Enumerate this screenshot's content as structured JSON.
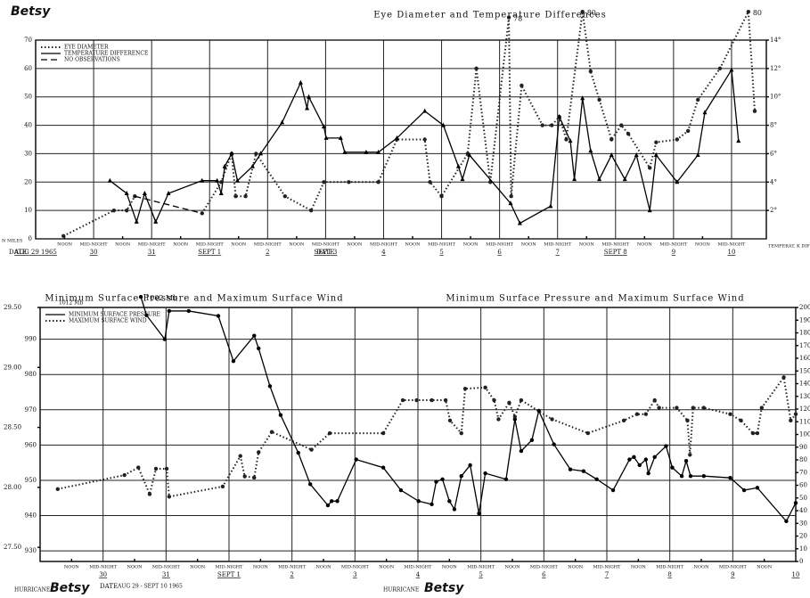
{
  "chart_data": [
    {
      "type": "line",
      "title": "Eye Diameter and Temperature Differences",
      "storm_label": "Betsy",
      "y_label": "N MILES",
      "y2_label": "TEMPERAT. K DIFFERENCE",
      "x_label": "DATE",
      "grid": true,
      "legend": "upper left",
      "xlim": [
        0,
        12.6
      ],
      "xticks": [
        {
          "value": 0.5,
          "label": "NOON"
        },
        {
          "value": 1,
          "label": "MID-NIGHT"
        },
        {
          "value": 1.5,
          "label": "NOON"
        },
        {
          "value": 2,
          "label": "MID-NIGHT"
        },
        {
          "value": 2.5,
          "label": "NOON"
        },
        {
          "value": 3,
          "label": "MID-NIGHT"
        },
        {
          "value": 3.5,
          "label": "NOON"
        },
        {
          "value": 4,
          "label": "MID-NIGHT"
        },
        {
          "value": 4.5,
          "label": "NOON"
        },
        {
          "value": 5,
          "label": "MID-NIGHT"
        },
        {
          "value": 5.5,
          "label": "NOON"
        },
        {
          "value": 6,
          "label": "MID-NIGHT"
        },
        {
          "value": 6.5,
          "label": "NOON"
        },
        {
          "value": 7,
          "label": "MID-NIGHT"
        },
        {
          "value": 7.5,
          "label": "NOON"
        },
        {
          "value": 8,
          "label": "MID-NIGHT"
        },
        {
          "value": 8.5,
          "label": "NOON"
        },
        {
          "value": 9,
          "label": "MID-NIGHT"
        },
        {
          "value": 9.5,
          "label": "NOON"
        },
        {
          "value": 10,
          "label": "MID-NIGHT"
        },
        {
          "value": 10.5,
          "label": "NOON"
        },
        {
          "value": 11,
          "label": "MID-NIGHT"
        },
        {
          "value": 11.5,
          "label": "NOON"
        },
        {
          "value": 12,
          "label": "MID-NIGHT"
        }
      ],
      "dates": [
        {
          "value": 0,
          "label": "AUG 29 1965"
        },
        {
          "value": 1,
          "label": "30"
        },
        {
          "value": 2,
          "label": "31"
        },
        {
          "value": 3,
          "label": "SEPT 1"
        },
        {
          "value": 4,
          "label": "2"
        },
        {
          "value": 5,
          "label": "SEPT 3"
        },
        {
          "value": 6,
          "label": "4"
        },
        {
          "value": 7,
          "label": "5"
        },
        {
          "value": 8,
          "label": "6"
        },
        {
          "value": 9,
          "label": "7"
        },
        {
          "value": 10,
          "label": "SEPT 8"
        },
        {
          "value": 11,
          "label": "9"
        },
        {
          "value": 12,
          "label": "10"
        }
      ],
      "ylim": [
        0,
        70
      ],
      "yticks": [
        0,
        10,
        20,
        30,
        40,
        50,
        60,
        70
      ],
      "y2lim": [
        0,
        14
      ],
      "y2ticks": [
        {
          "value": 2,
          "label": "2°"
        },
        {
          "value": 4,
          "label": "4°"
        },
        {
          "value": 6,
          "label": "6°"
        },
        {
          "value": 8,
          "label": "8°"
        },
        {
          "value": 10,
          "label": "10°"
        },
        {
          "value": 12,
          "label": "12°"
        },
        {
          "value": 14,
          "label": "14°"
        }
      ],
      "series": [
        {
          "name": "EYE DIAMETER",
          "color": "#222222",
          "style": "dotted",
          "marker": "circle",
          "x": [
            0.48,
            1.35,
            1.57,
            1.71,
            null,
            2.87,
            3.2,
            3.38,
            3.45,
            3.62,
            3.8,
            4.3,
            4.75,
            4.97,
            5.4,
            5.91,
            6.23,
            6.71,
            6.8,
            7.0,
            7.45,
            7.6,
            7.84,
            8.16,
            8.2,
            8.38,
            8.74,
            8.9,
            9.03,
            9.15,
            9.43,
            9.57,
            9.72,
            9.93,
            10.1,
            10.22,
            10.59,
            10.7,
            11.06,
            11.25,
            11.42,
            11.8,
            12.29,
            12.4
          ],
          "values": [
            1,
            10,
            10,
            15,
            null,
            9,
            20,
            30,
            15,
            15,
            30,
            15,
            10,
            20,
            20,
            20,
            35,
            35,
            20,
            15,
            30,
            60,
            20,
            78,
            15,
            54,
            40,
            40,
            43,
            35,
            80,
            59,
            49,
            35,
            40,
            37,
            25,
            34,
            35,
            38,
            49,
            60,
            80,
            45
          ],
          "value_labels": [
            null,
            null,
            null,
            null,
            null,
            null,
            null,
            null,
            null,
            null,
            null,
            null,
            null,
            null,
            null,
            null,
            null,
            null,
            null,
            null,
            null,
            null,
            null,
            "78",
            null,
            null,
            null,
            null,
            null,
            null,
            "80",
            null,
            null,
            null,
            null,
            null,
            null,
            null,
            null,
            null,
            null,
            null,
            "80",
            null
          ]
        },
        {
          "name": "TEMPERATURE DIFFERENCE",
          "color": "#000000",
          "style": "solid",
          "marker": "triangle",
          "axis": "y2",
          "x": [
            1.28,
            1.57,
            1.74,
            1.88,
            2.07,
            2.29,
            2.87,
            3.13,
            3.2,
            3.26,
            3.38,
            3.48,
            3.74,
            3.88,
            4.25,
            4.57,
            4.68,
            4.71,
            4.97,
            5.01,
            5.26,
            5.33,
            5.7,
            5.91,
            6.23,
            6.71,
            7.03,
            7.29,
            7.36,
            7.48,
            8.19,
            8.35,
            8.88,
            9.03,
            9.22,
            9.29,
            9.43,
            9.57,
            9.72,
            9.93,
            10.16,
            10.36,
            10.59,
            10.7,
            11.06,
            11.42,
            11.54,
            12.0,
            12.12
          ],
          "values": [
            4.1,
            3.2,
            1.2,
            3.2,
            1.2,
            3.2,
            4.1,
            4.1,
            3.2,
            5.1,
            6.0,
            4.1,
            5.1,
            6.0,
            8.2,
            11.0,
            9.2,
            10.0,
            7.9,
            7.1,
            7.1,
            6.1,
            6.1,
            6.1,
            7.1,
            9.0,
            8.0,
            5.1,
            4.2,
            5.9,
            2.5,
            1.1,
            2.3,
            8.6,
            6.9,
            4.2,
            9.9,
            6.2,
            4.2,
            5.9,
            4.2,
            5.9,
            2.0,
            5.9,
            4.0,
            5.9,
            8.9,
            11.9,
            6.9
          ]
        },
        {
          "name": "NO OBSERVATIONS",
          "color": "#000000",
          "style": "dashed",
          "marker": "none",
          "x": [
            1.71,
            2.87
          ],
          "values": [
            15,
            9
          ]
        }
      ]
    },
    {
      "type": "line",
      "titles": [
        "Minimum Surface Pressure and Maximum Surface Wind",
        "Minimum Surface Pressure and Maximum Surface Wind"
      ],
      "annotations": [
        "HURRICANE",
        "Betsy",
        "AUG 29 - SEPT 10 1965",
        "1012 Mb"
      ],
      "x_label": "DATE",
      "grid": true,
      "legend": "upper left",
      "xlim": [
        0,
        12
      ],
      "xticks": [
        {
          "value": 0.5,
          "label": "NOON"
        },
        {
          "value": 1,
          "label": "MID-NIGHT"
        },
        {
          "value": 1.5,
          "label": "NOON"
        },
        {
          "value": 2,
          "label": "MID-NIGHT"
        },
        {
          "value": 2.5,
          "label": "NOON"
        },
        {
          "value": 3,
          "label": "MID-NIGHT"
        },
        {
          "value": 3.5,
          "label": "NOON"
        },
        {
          "value": 4,
          "label": "MID-NIGHT"
        },
        {
          "value": 4.5,
          "label": "NOON"
        },
        {
          "value": 5,
          "label": "MID-NIGHT"
        },
        {
          "value": 5.5,
          "label": "NOON"
        },
        {
          "value": 6,
          "label": "MID-NIGHT"
        },
        {
          "value": 6.5,
          "label": "NOON"
        },
        {
          "value": 7,
          "label": "MID-NIGHT"
        },
        {
          "value": 7.5,
          "label": "NOON"
        },
        {
          "value": 8,
          "label": "MID-NIGHT"
        },
        {
          "value": 8.5,
          "label": "NOON"
        },
        {
          "value": 9,
          "label": "MID-NIGHT"
        },
        {
          "value": 9.5,
          "label": "NOON"
        },
        {
          "value": 10,
          "label": "MID-NIGHT"
        },
        {
          "value": 10.5,
          "label": "NOON"
        },
        {
          "value": 11,
          "label": "MID-NIGHT"
        },
        {
          "value": 11.5,
          "label": "NOON"
        }
      ],
      "dates": [
        {
          "value": 1,
          "label": "30"
        },
        {
          "value": 2,
          "label": "31"
        },
        {
          "value": 3,
          "label": "SEPT 1"
        },
        {
          "value": 4,
          "label": "2"
        },
        {
          "value": 5,
          "label": "3"
        },
        {
          "value": 6,
          "label": "4"
        },
        {
          "value": 7,
          "label": "5"
        },
        {
          "value": 8,
          "label": "6"
        },
        {
          "value": 9,
          "label": "7"
        },
        {
          "value": 10,
          "label": "8"
        },
        {
          "value": 11,
          "label": "9"
        },
        {
          "value": 12,
          "label": "10"
        }
      ],
      "ylim": [
        927,
        999
      ],
      "yticks": [
        930,
        940,
        950,
        960,
        970,
        980,
        990
      ],
      "y_in_ticks": [
        {
          "value": 931,
          "label": "27.50"
        },
        {
          "value": 948,
          "label": "28.00"
        },
        {
          "value": 965,
          "label": "28.50"
        },
        {
          "value": 982,
          "label": "29.00"
        },
        {
          "value": 999,
          "label": "29.50"
        }
      ],
      "y2lim": [
        0,
        200
      ],
      "y2ticks": [
        0,
        10,
        20,
        30,
        40,
        50,
        60,
        70,
        80,
        90,
        100,
        110,
        120,
        130,
        140,
        150,
        160,
        170,
        180,
        190,
        200
      ],
      "series": [
        {
          "name": "MINIMUM SURFACE PRESSURE",
          "color": "#000000",
          "style": "solid",
          "marker": "circle",
          "x": [
            1.6,
            1.69,
            1.98,
            2.05,
            2.36,
            2.83,
            3.07,
            3.4,
            3.47,
            3.65,
            3.82,
            4.1,
            4.29,
            4.57,
            4.63,
            4.72,
            5.02,
            5.45,
            5.73,
            6.01,
            6.22,
            6.29,
            6.39,
            6.5,
            6.58,
            6.69,
            6.83,
            6.97,
            7.07,
            7.4,
            7.54,
            7.64,
            7.81,
            7.92,
            8.16,
            8.42,
            8.63,
            8.84,
            9.1,
            9.36,
            9.43,
            9.52,
            9.62,
            9.66,
            9.76,
            9.94,
            10.04,
            10.19,
            10.26,
            10.33,
            10.54,
            10.96,
            11.18,
            11.39,
            11.85,
            12.0
          ],
          "values": [
            1002,
            996.8,
            990,
            998,
            998,
            996.6,
            983.8,
            991,
            987.4,
            976.7,
            968.5,
            957.8,
            948.9,
            942.9,
            944.1,
            944.1,
            955.9,
            953.6,
            947.2,
            944.1,
            943.2,
            949.6,
            950.3,
            944.1,
            941.8,
            951.2,
            954.3,
            940.6,
            952,
            950.3,
            967.3,
            958.3,
            961.4,
            969.7,
            960.2,
            953.1,
            952.6,
            950.3,
            947.2,
            955.9,
            956.6,
            954.3,
            955.9,
            952,
            956.6,
            959.7,
            953.6,
            951.2,
            955.5,
            951.2,
            951.2,
            950.7,
            947.2,
            947.9,
            938.4,
            943.6
          ],
          "value_labels": [
            "1002 Mb",
            null,
            null,
            null,
            null,
            null,
            null,
            null,
            null,
            null,
            null,
            null,
            null,
            null,
            null,
            null,
            null,
            null,
            null,
            null,
            null,
            null,
            null,
            null,
            null,
            null,
            null,
            null,
            null,
            null,
            null,
            null,
            null,
            null,
            null,
            null,
            null,
            null,
            null,
            null,
            null,
            null,
            null,
            null,
            null,
            null,
            null,
            null,
            null,
            null,
            null,
            null,
            null,
            null,
            null,
            null
          ]
        },
        {
          "name": "MAXIMUM SURFACE WIND",
          "color": "#222222",
          "style": "dotted",
          "marker": "circle",
          "axis": "y2",
          "x": [
            0.28,
            1.34,
            1.56,
            1.74,
            1.84,
            2.01,
            2.05,
            2.9,
            3.18,
            3.25,
            3.4,
            3.47,
            3.68,
            4.31,
            4.6,
            5.45,
            5.76,
            5.98,
            6.22,
            6.44,
            6.51,
            6.69,
            6.75,
            7.07,
            7.21,
            7.28,
            7.45,
            7.54,
            7.64,
            8.13,
            8.7,
            9.27,
            9.48,
            9.62,
            9.76,
            9.83,
            10.11,
            10.28,
            10.32,
            10.37,
            10.54,
            10.96,
            11.13,
            11.32,
            11.39,
            11.46,
            11.81,
            11.92,
            12.0
          ],
          "values": [
            57,
            68,
            74,
            53,
            73,
            73,
            51,
            59,
            83,
            67,
            66,
            86,
            102,
            88,
            101,
            101,
            127,
            127,
            127,
            127,
            111,
            101,
            136,
            137,
            127,
            112,
            125,
            114,
            127,
            112,
            101,
            111,
            116,
            116,
            127,
            121,
            121,
            111,
            84,
            121,
            121,
            116,
            111,
            101,
            101,
            121,
            145,
            111,
            116
          ]
        }
      ]
    }
  ]
}
